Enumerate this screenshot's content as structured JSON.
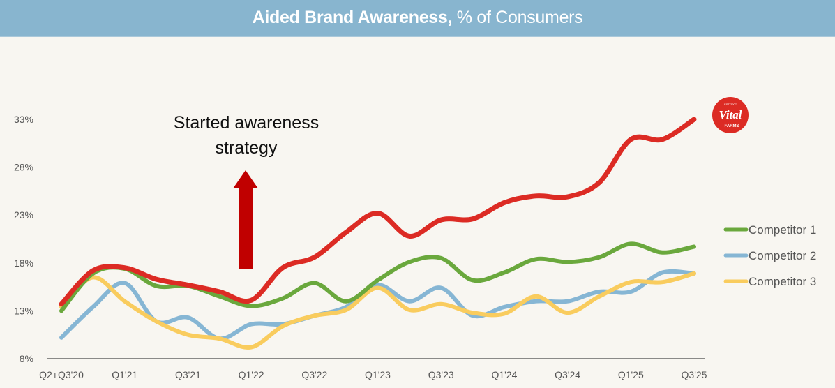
{
  "chart_data": {
    "type": "line",
    "title_bold": "Aided Brand Awareness,",
    "title_rest": " % of Consumers",
    "xlabel": "",
    "ylabel": "",
    "ylim": [
      8,
      33
    ],
    "yticks": [
      "8%",
      "13%",
      "18%",
      "23%",
      "28%",
      "33%"
    ],
    "ytick_values": [
      8,
      13,
      18,
      23,
      28,
      33
    ],
    "x": [
      "Q2+Q3'20",
      "Q4'20",
      "Q1'21",
      "Q2'21",
      "Q3'21",
      "Q4'21",
      "Q1'22",
      "Q2'22",
      "Q3'22",
      "Q4'22",
      "Q1'23",
      "Q2'23",
      "Q3'23",
      "Q4'23",
      "Q1'24",
      "Q2'24",
      "Q3'24",
      "Q4'24",
      "Q1'25",
      "Q2'25",
      "Q3'25"
    ],
    "xtick_labels": [
      "Q2+Q3'20",
      "Q1'21",
      "Q3'21",
      "Q1'22",
      "Q3'22",
      "Q1'23",
      "Q3'23",
      "Q1'24",
      "Q3'24",
      "Q1'25",
      "Q3'25"
    ],
    "xtick_indices": [
      0,
      2,
      4,
      6,
      8,
      10,
      12,
      14,
      16,
      18,
      20
    ],
    "grid": false,
    "legend_position": "right",
    "series": [
      {
        "name": "Vital Farms",
        "color": "#dc2b24",
        "in_legend": false,
        "values": [
          13.7,
          17.2,
          17.5,
          16.3,
          15.7,
          15.0,
          14.1,
          17.5,
          18.6,
          21.2,
          23.2,
          20.8,
          22.5,
          22.6,
          24.3,
          25.0,
          24.9,
          26.4,
          30.9,
          30.9,
          33.0
        ]
      },
      {
        "name": "Competitor 1",
        "color": "#6aa83d",
        "in_legend": true,
        "values": [
          13.0,
          16.9,
          17.4,
          15.6,
          15.6,
          14.5,
          13.5,
          14.3,
          15.9,
          14.0,
          16.2,
          18.1,
          18.5,
          16.2,
          17.0,
          18.4,
          18.1,
          18.6,
          20.0,
          19.1,
          19.7
        ]
      },
      {
        "name": "Competitor 2",
        "color": "#86b6d4",
        "in_legend": true,
        "values": [
          10.2,
          13.4,
          15.9,
          11.9,
          12.3,
          10.1,
          11.6,
          11.6,
          12.5,
          13.4,
          15.7,
          14.0,
          15.4,
          12.5,
          13.4,
          14.0,
          14.0,
          15.0,
          15.0,
          17.0,
          16.9
        ]
      },
      {
        "name": "Competitor 3",
        "color": "#f9cc5e",
        "in_legend": true,
        "values": [
          13.4,
          16.5,
          14.0,
          11.9,
          10.5,
          10.1,
          9.2,
          11.4,
          12.5,
          13.1,
          15.4,
          13.1,
          13.7,
          12.8,
          12.7,
          14.5,
          12.8,
          14.5,
          16.0,
          16.0,
          16.9
        ]
      }
    ],
    "annotations": [
      {
        "text_line1": "Started awareness",
        "text_line2": "strategy",
        "arrow_color": "#c00000",
        "at_x": "Q1'22"
      }
    ],
    "logo": {
      "text_top": "EST 2007",
      "text_main": "Vital",
      "text_bottom": "FARMS",
      "color": "#dc2b24"
    }
  }
}
